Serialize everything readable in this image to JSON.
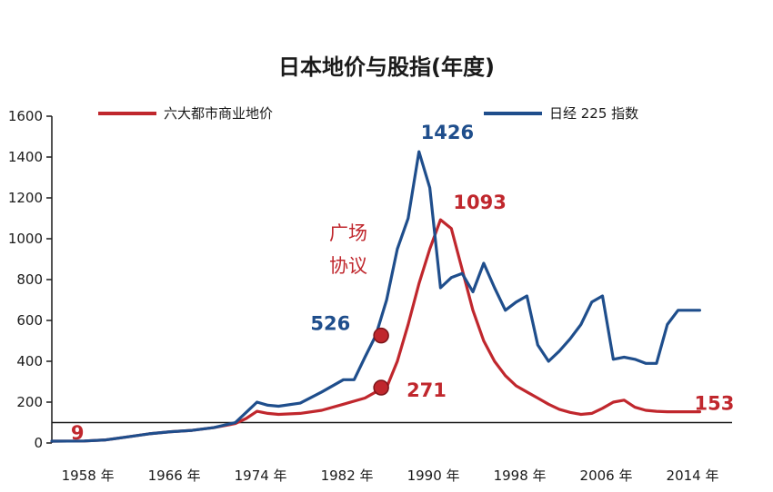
{
  "chart_data": {
    "type": "line",
    "title": "日本地价与股指(年度)",
    "xlabel": "",
    "ylabel": "",
    "xlim": [
      1955,
      2018
    ],
    "ylim": [
      0,
      1600
    ],
    "x_ticks": [
      1958,
      1966,
      1974,
      1982,
      1990,
      1998,
      2006,
      2014
    ],
    "x_tick_labels": [
      "1958 年",
      "1966 年",
      "1974 年",
      "1982 年",
      "1990 年",
      "1998 年",
      "2006 年",
      "2014 年"
    ],
    "y_ticks": [
      0,
      200,
      400,
      600,
      800,
      1000,
      1200,
      1400,
      1600
    ],
    "y_tick_labels": [
      "0",
      "200",
      "400",
      "600",
      "800",
      "1000",
      "1200",
      "1400",
      "1600"
    ],
    "grid": false,
    "legend_position": "top",
    "reference_line": 100,
    "series": [
      {
        "name": "六大都市商业地价",
        "color": "#c0272d",
        "x": [
          1955,
          1958,
          1960,
          1962,
          1964,
          1966,
          1968,
          1970,
          1972,
          1973,
          1974,
          1975,
          1976,
          1978,
          1980,
          1982,
          1984,
          1985,
          1986,
          1987,
          1988,
          1989,
          1990,
          1991,
          1992,
          1993,
          1994,
          1995,
          1996,
          1997,
          1998,
          1999,
          2000,
          2001,
          2002,
          2003,
          2004,
          2005,
          2006,
          2007,
          2008,
          2009,
          2010,
          2011,
          2012,
          2013,
          2014,
          2015
        ],
        "values": [
          9,
          10,
          15,
          30,
          45,
          55,
          62,
          75,
          95,
          120,
          155,
          145,
          140,
          145,
          160,
          190,
          220,
          250,
          271,
          400,
          580,
          780,
          950,
          1093,
          1050,
          850,
          650,
          500,
          400,
          330,
          280,
          250,
          220,
          190,
          165,
          150,
          140,
          145,
          170,
          200,
          210,
          175,
          160,
          155,
          153,
          153,
          153,
          153
        ]
      },
      {
        "name": "日经 225 指数",
        "color": "#1f4e8c",
        "x": [
          1955,
          1958,
          1960,
          1962,
          1964,
          1966,
          1968,
          1970,
          1972,
          1973,
          1974,
          1975,
          1976,
          1978,
          1980,
          1982,
          1983,
          1984,
          1985,
          1986,
          1987,
          1988,
          1989,
          1990,
          1991,
          1992,
          1993,
          1994,
          1995,
          1996,
          1997,
          1998,
          1999,
          2000,
          2001,
          2002,
          2003,
          2004,
          2005,
          2006,
          2007,
          2008,
          2009,
          2010,
          2011,
          2012,
          2013,
          2014,
          2015
        ],
        "values": [
          9,
          10,
          15,
          30,
          45,
          55,
          62,
          75,
          100,
          150,
          200,
          185,
          180,
          195,
          250,
          310,
          310,
          420,
          526,
          700,
          950,
          1100,
          1426,
          1250,
          760,
          810,
          830,
          740,
          880,
          760,
          650,
          690,
          720,
          480,
          400,
          450,
          510,
          580,
          690,
          720,
          410,
          420,
          410,
          390,
          390,
          580,
          650,
          650,
          650
        ]
      }
    ],
    "annotations": [
      {
        "text": "9",
        "x": 1956,
        "y": 9,
        "color": "#c0272d"
      },
      {
        "text": "1426",
        "x": 1989,
        "y": 1426,
        "color": "#1f4e8c"
      },
      {
        "text": "1093",
        "x": 1991,
        "y": 1093,
        "color": "#c0272d"
      },
      {
        "text": "526",
        "x": 1985,
        "y": 526,
        "color": "#1f4e8c"
      },
      {
        "text": "271",
        "x": 1986,
        "y": 271,
        "color": "#c0272d"
      },
      {
        "text": "153",
        "x": 2014,
        "y": 153,
        "color": "#c0272d"
      }
    ],
    "event_label": [
      "广场",
      "协议"
    ],
    "markers": [
      {
        "x": 1985.5,
        "y": 526,
        "color": "#c0272d"
      },
      {
        "x": 1985.5,
        "y": 271,
        "color": "#c0272d"
      }
    ]
  }
}
